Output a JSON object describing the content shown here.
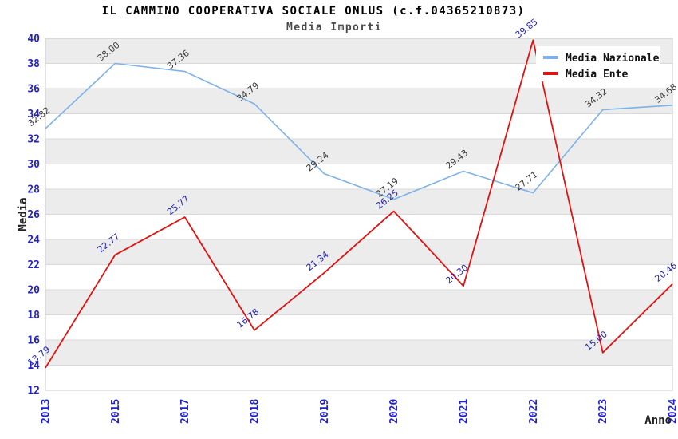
{
  "chart_data": {
    "type": "line",
    "title": "IL CAMMINO COOPERATIVA SOCIALE ONLUS (c.f.04365210873)",
    "subtitle": "Media Importi",
    "xlabel": "Anno",
    "ylabel": "Media",
    "categories": [
      "2013",
      "2015",
      "2017",
      "2018",
      "2019",
      "2020",
      "2021",
      "2022",
      "2023",
      "2024"
    ],
    "series": [
      {
        "name": "Media Nazionale",
        "color": "#7db1e8",
        "label_color": "#3a3a3a",
        "values": [
          32.82,
          38.0,
          37.36,
          34.79,
          29.24,
          27.19,
          29.43,
          27.71,
          34.32,
          34.68
        ],
        "labels": [
          "32.82",
          "38.00",
          "37.36",
          "34.79",
          "29.24",
          "27.19",
          "29.43",
          "27.71",
          "34.32",
          "34.68"
        ]
      },
      {
        "name": "Media Ente",
        "color": "#e01212",
        "label_color": "#2525b5",
        "values": [
          13.79,
          22.77,
          25.77,
          16.78,
          21.34,
          26.25,
          20.3,
          39.85,
          15.0,
          20.46
        ],
        "labels": [
          "13.79",
          "22.77",
          "25.77",
          "16.78",
          "21.34",
          "26.25",
          "20.30",
          "39.85",
          "15.00",
          "20.46"
        ]
      }
    ],
    "ylim": [
      12,
      40
    ],
    "ytick_step": 2,
    "yticks": [
      "12",
      "14",
      "16",
      "18",
      "20",
      "22",
      "24",
      "26",
      "28",
      "30",
      "32",
      "34",
      "36",
      "38",
      "40"
    ],
    "grid": true,
    "legend_position": "top-right",
    "axis_label_color": "#2222cc",
    "band_color": "#ececec",
    "gridline_color": "#d9d9d9",
    "border_color": "#c8c8c8"
  }
}
